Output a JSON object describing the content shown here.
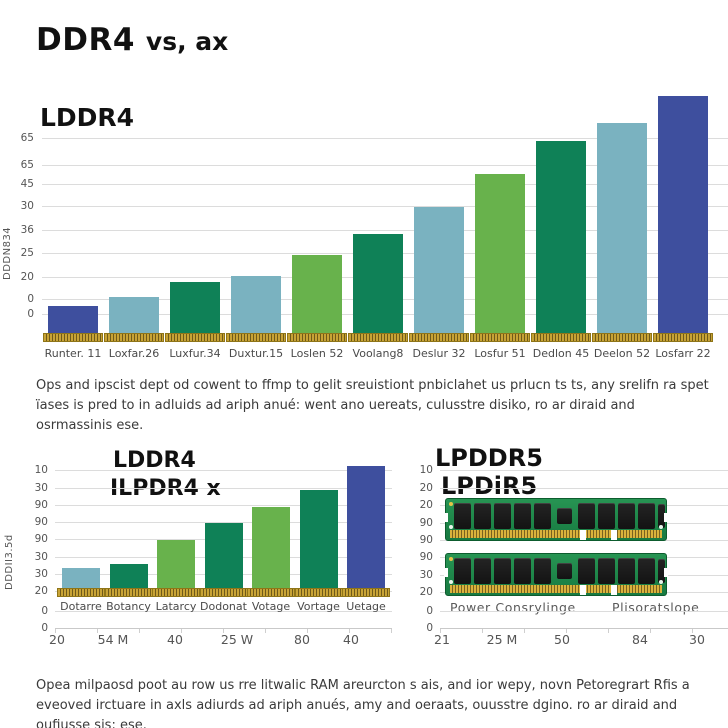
{
  "header": {
    "title_main": "DDR4",
    "title_suffix": "vs, ax"
  },
  "paragraph_top": "Ops and ipscist dept od cowent to ffmp to gelit sreuistiont pnbiclahet us prlucn ts ts, any srelifn ra spet ïases is pred to in adluids ad ariph anué: went ano uereats, culusstre disiko, ro ar diraid and osrmassinis ese.",
  "paragraph_bottom": "Opea milpaosd poot au row us rre litwalic RAM areurcton s ais, and ior wepy, novn Petoregrart Rfis a eveoved irctuare in axls adiurds ad ariph anués, amy and oeraats, ouusstre dgino. ro ar diraid and oufiusse sis; ese.",
  "colors": {
    "indigo": "#3e4f9e",
    "teal": "#7ab2c0",
    "green_dark": "#0f8157",
    "green_light": "#68b24c",
    "gold": "#c8a335",
    "pcb_green": "#1f8b4b",
    "gridline": "#dcdcdc"
  },
  "chart_data": [
    {
      "id": "main-ddr4-chart",
      "type": "bar",
      "title": "LDDR4",
      "ylabel": "DDDN834",
      "grid": true,
      "legend": "none",
      "y_tick_labels": [
        "65",
        "65",
        "45",
        "30",
        "36",
        "25",
        "20",
        "0",
        "0"
      ],
      "ylim": [
        0,
        80
      ],
      "categories": [
        "Runter. 11",
        "Loxfar.26",
        "Luxfur.34",
        "Duxtur.15",
        "Loslen 52",
        "Voolang8",
        "Deslur 32",
        "Losfur 51",
        "Dedlon 45",
        "Deelon 52",
        "Losfarr 22"
      ],
      "values": [
        9,
        12,
        17,
        19,
        26,
        33,
        42,
        53,
        64,
        70,
        79
      ],
      "bar_colors": [
        "indigo",
        "teal",
        "green_dark",
        "teal",
        "green_light",
        "green_dark",
        "teal",
        "green_light",
        "green_dark",
        "teal",
        "indigo"
      ]
    },
    {
      "id": "lpddr4x-chart",
      "type": "bar",
      "title_line1": "LDDR4",
      "title_line2": "ILPDR4 x",
      "ylabel": "DDDII3.5d",
      "grid": true,
      "legend": "none",
      "y_tick_labels": [
        "10",
        "30",
        "90",
        "90",
        "90",
        "30",
        "30",
        "20",
        "0",
        "0"
      ],
      "ylim": [
        0,
        100
      ],
      "categories": [
        "Dotarre",
        "Botancy",
        "Latarcy",
        "Dodonat",
        "Votage",
        "Vortage",
        "Uetage"
      ],
      "values": [
        16,
        20,
        39,
        53,
        66,
        80,
        100
      ],
      "bar_colors": [
        "teal",
        "green_dark",
        "green_light",
        "green_dark",
        "green_light",
        "green_dark",
        "indigo"
      ],
      "x_numbers": [
        "20",
        "54 M",
        "40",
        "25 W",
        "80",
        "40"
      ]
    }
  ],
  "right_panel": {
    "title_line1": "LPDDR5",
    "title_line2": "LPDiR5",
    "y_tick_labels": [
      "10",
      "20",
      "20",
      "90",
      "90",
      "90",
      "30",
      "20",
      "0",
      "0"
    ],
    "module_labels": [
      "Power Consrylinge",
      "Plisoratslope"
    ],
    "x_numbers": [
      "21",
      "25 M",
      "50",
      "84",
      "30"
    ]
  }
}
